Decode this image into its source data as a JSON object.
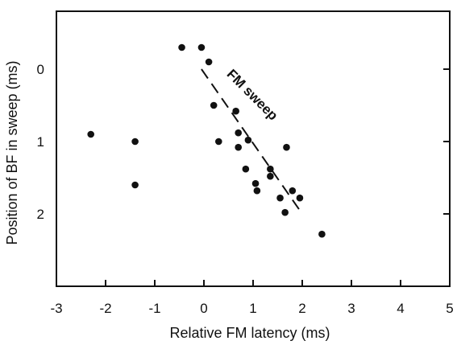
{
  "chart_data": {
    "type": "scatter",
    "title": "",
    "xlabel": "Relative FM latency (ms)",
    "ylabel": "Position of BF in sweep (ms)",
    "xlim": [
      -3,
      5
    ],
    "ylim": [
      3,
      -0.8
    ],
    "x_ticks": [
      -3,
      -2,
      -1,
      0,
      1,
      2,
      3,
      4,
      5
    ],
    "x_tick_labels": [
      "-3",
      "-2",
      "-1",
      "0",
      "1",
      "2",
      "3",
      "4",
      "5"
    ],
    "y_ticks": [
      0,
      1,
      2
    ],
    "y_tick_labels": [
      "0",
      "1",
      "2"
    ],
    "grid": false,
    "legend": "none",
    "point_color": "#111111",
    "series": [
      {
        "name": "",
        "points": [
          {
            "x": -0.45,
            "y": -0.3
          },
          {
            "x": -0.05,
            "y": -0.3
          },
          {
            "x": 0.1,
            "y": -0.1
          },
          {
            "x": 0.2,
            "y": 0.5
          },
          {
            "x": 0.3,
            "y": 1.0
          },
          {
            "x": 0.65,
            "y": 0.58
          },
          {
            "x": 0.7,
            "y": 0.88
          },
          {
            "x": 0.7,
            "y": 1.08
          },
          {
            "x": 0.9,
            "y": 0.98
          },
          {
            "x": 0.85,
            "y": 1.38
          },
          {
            "x": 1.05,
            "y": 1.58
          },
          {
            "x": 1.08,
            "y": 1.68
          },
          {
            "x": 1.35,
            "y": 1.48
          },
          {
            "x": 1.35,
            "y": 1.38
          },
          {
            "x": 1.55,
            "y": 1.78
          },
          {
            "x": 1.65,
            "y": 1.98
          },
          {
            "x": 1.68,
            "y": 1.08
          },
          {
            "x": 1.8,
            "y": 1.68
          },
          {
            "x": 1.95,
            "y": 1.78
          },
          {
            "x": 2.4,
            "y": 2.28
          },
          {
            "x": -1.4,
            "y": 1.0
          },
          {
            "x": -1.4,
            "y": 1.6
          },
          {
            "x": -2.3,
            "y": 0.9
          }
        ]
      }
    ],
    "fm_sweep_line": {
      "points": [
        {
          "x": -0.05,
          "y": 0.0
        },
        {
          "x": 2.0,
          "y": 2.0
        }
      ],
      "style": "dashed",
      "color": "#111111"
    },
    "annotations": [
      {
        "text": "FM sweep",
        "x": 0.45,
        "y": 0.08,
        "angle": 45
      }
    ]
  }
}
